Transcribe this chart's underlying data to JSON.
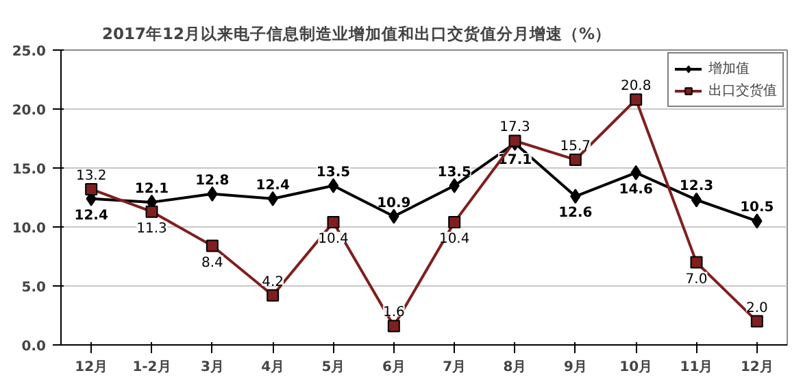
{
  "chart_data": {
    "type": "line",
    "title": "2017年12月以来电子信息制造业增加值和出口交货值分月增速（%）",
    "categories": [
      "12月",
      "1-2月",
      "3月",
      "4月",
      "5月",
      "6月",
      "7月",
      "8月",
      "9月",
      "10月",
      "11月",
      "12月"
    ],
    "series": [
      {
        "name": "增加值",
        "color": "#000000",
        "marker": "diamond",
        "values": [
          12.4,
          12.1,
          12.8,
          12.4,
          13.5,
          10.9,
          13.5,
          17.1,
          12.6,
          14.6,
          12.3,
          10.5
        ],
        "value_labels": [
          "12.4",
          "12.1",
          "12.8",
          "12.4",
          "13.5",
          "10.9",
          "13.5",
          "17.1",
          "12.6",
          "14.6",
          "12.3",
          "10.5"
        ]
      },
      {
        "name": "出口交货值",
        "color": "#7f1f1f",
        "marker": "square",
        "values": [
          13.2,
          11.3,
          8.4,
          4.2,
          10.4,
          1.6,
          10.4,
          17.3,
          15.7,
          20.8,
          7.0,
          2.0
        ],
        "value_labels": [
          "13.2",
          "11.3",
          "8.4",
          "4.2",
          "10.4",
          "1.6",
          "10.4",
          "17.3",
          "15.7",
          "20.8",
          "7.0",
          "2.0"
        ]
      }
    ],
    "ylim": [
      0,
      25
    ],
    "yticks": [
      {
        "value": 0,
        "label": "0.0"
      },
      {
        "value": 5,
        "label": "5.0"
      },
      {
        "value": 10,
        "label": "10.0"
      },
      {
        "value": 15,
        "label": "15.0"
      },
      {
        "value": 20,
        "label": "20.0"
      },
      {
        "value": 25,
        "label": "25.0"
      }
    ],
    "grid": "y",
    "legend": "top right",
    "line_style": "solid"
  }
}
